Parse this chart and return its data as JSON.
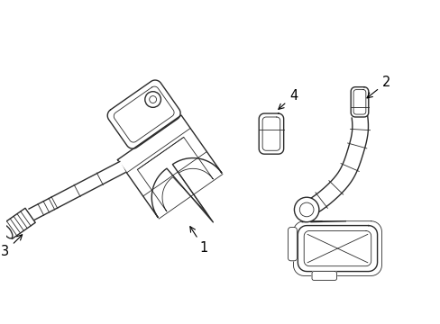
{
  "bg_color": "#ffffff",
  "line_color": "#2a2a2a",
  "lw": 1.0,
  "llw": 0.6,
  "fig_w": 4.89,
  "fig_h": 3.6
}
